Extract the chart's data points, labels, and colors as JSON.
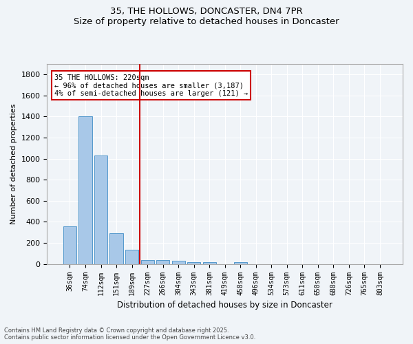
{
  "title_line1": "35, THE HOLLOWS, DONCASTER, DN4 7PR",
  "title_line2": "Size of property relative to detached houses in Doncaster",
  "xlabel": "Distribution of detached houses by size in Doncaster",
  "ylabel": "Number of detached properties",
  "bar_labels": [
    "36sqm",
    "74sqm",
    "112sqm",
    "151sqm",
    "189sqm",
    "227sqm",
    "266sqm",
    "304sqm",
    "343sqm",
    "381sqm",
    "419sqm",
    "458sqm",
    "496sqm",
    "534sqm",
    "573sqm",
    "611sqm",
    "650sqm",
    "688sqm",
    "726sqm",
    "765sqm",
    "803sqm"
  ],
  "bar_values": [
    360,
    1400,
    1030,
    290,
    135,
    40,
    35,
    30,
    18,
    15,
    0,
    20,
    0,
    0,
    0,
    0,
    0,
    0,
    0,
    0,
    0
  ],
  "bar_color": "#a8c8e8",
  "bar_edge_color": "#5599cc",
  "property_line_x": 5,
  "property_line_label": "35 THE HOLLOWS: 220sqm",
  "annotation_line1": "35 THE HOLLOWS: 220sqm",
  "annotation_line2": "← 96% of detached houses are smaller (3,187)",
  "annotation_line3": "4% of semi-detached houses are larger (121) →",
  "vline_color": "#cc0000",
  "annotation_box_color": "#ffffff",
  "annotation_box_edge": "#cc0000",
  "background_color": "#f0f4f8",
  "grid_color": "#ffffff",
  "ylim": [
    0,
    1900
  ],
  "yticks": [
    0,
    200,
    400,
    600,
    800,
    1000,
    1200,
    1400,
    1600,
    1800
  ],
  "footer_line1": "Contains HM Land Registry data © Crown copyright and database right 2025.",
  "footer_line2": "Contains public sector information licensed under the Open Government Licence v3.0."
}
